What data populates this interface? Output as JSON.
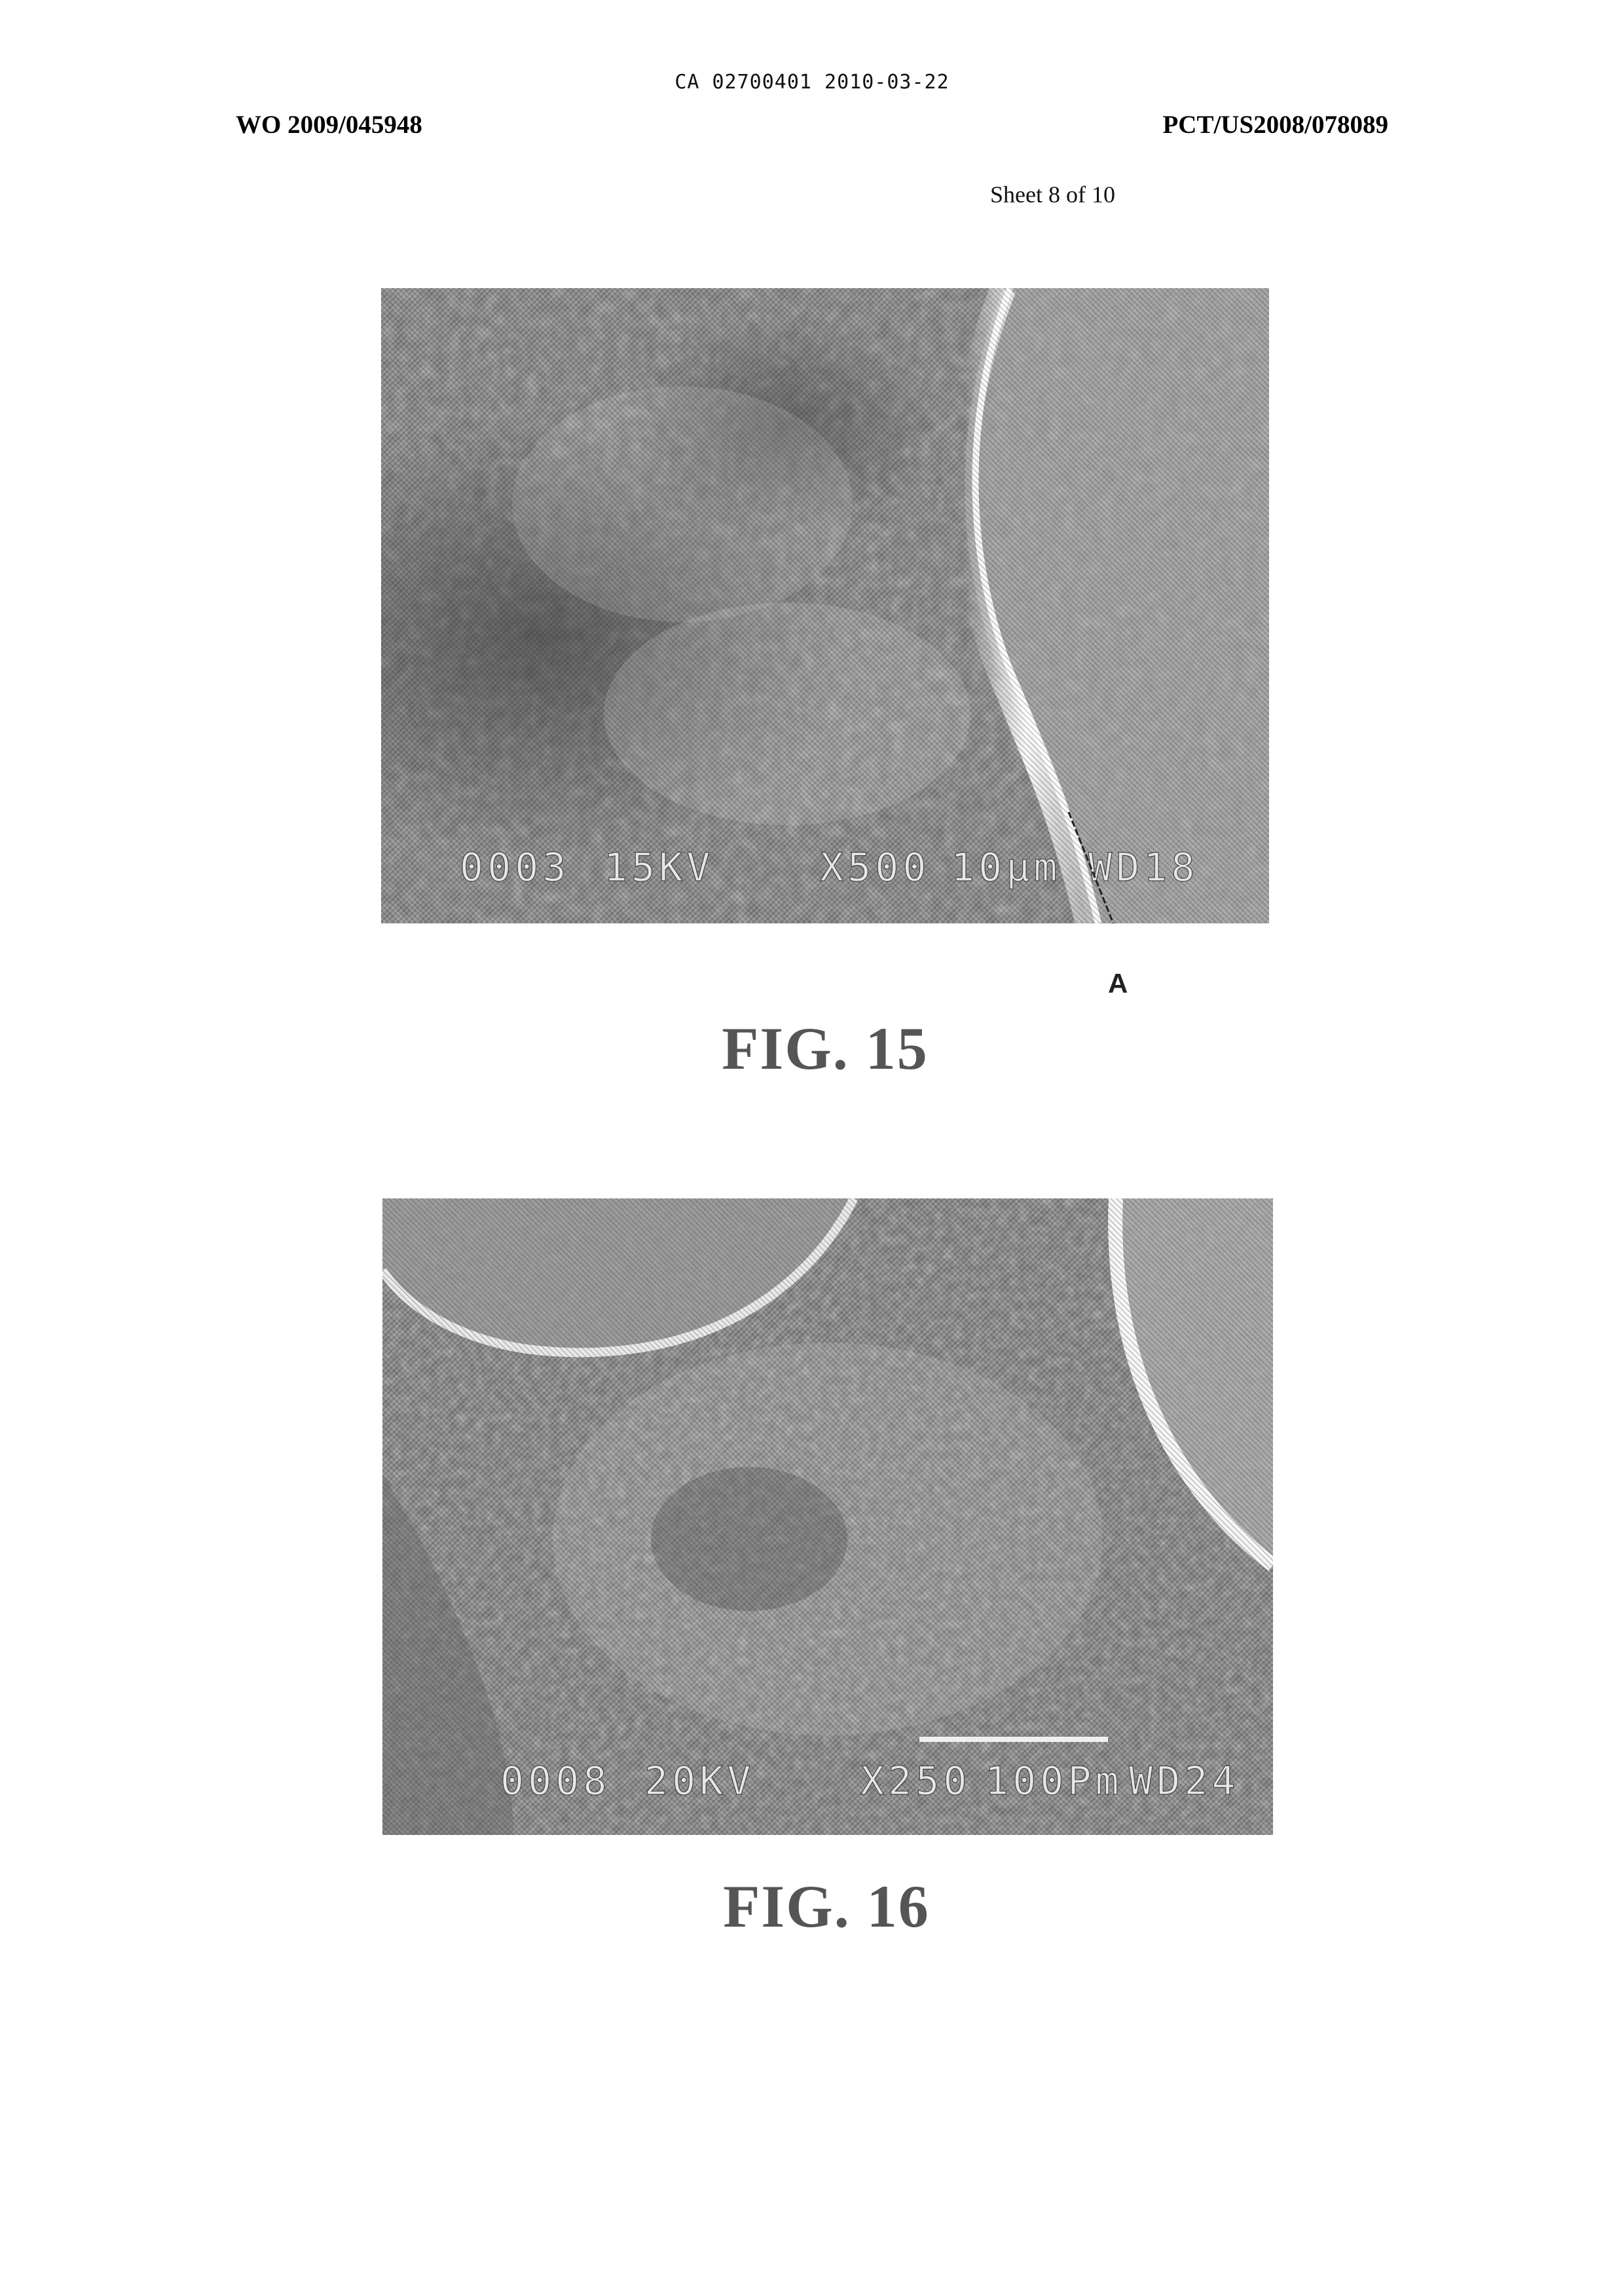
{
  "header": {
    "doc_number": "CA 02700401 2010-03-22",
    "wo_number": "WO 2009/045948",
    "pct_number": "PCT/US2008/078089",
    "sheet": "Sheet 8 of 10"
  },
  "figures": [
    {
      "caption": "FIG. 15",
      "micrograph": {
        "image_number": "0003",
        "voltage": "15KV",
        "magnification": "X500",
        "scale": "10µm",
        "working_distance": "WD18"
      },
      "reference_label": "A"
    },
    {
      "caption": "FIG. 16",
      "micrograph": {
        "image_number": "0008",
        "voltage": "20KV",
        "magnification": "X250",
        "scale": "100Pm",
        "working_distance": "WD24"
      }
    }
  ]
}
